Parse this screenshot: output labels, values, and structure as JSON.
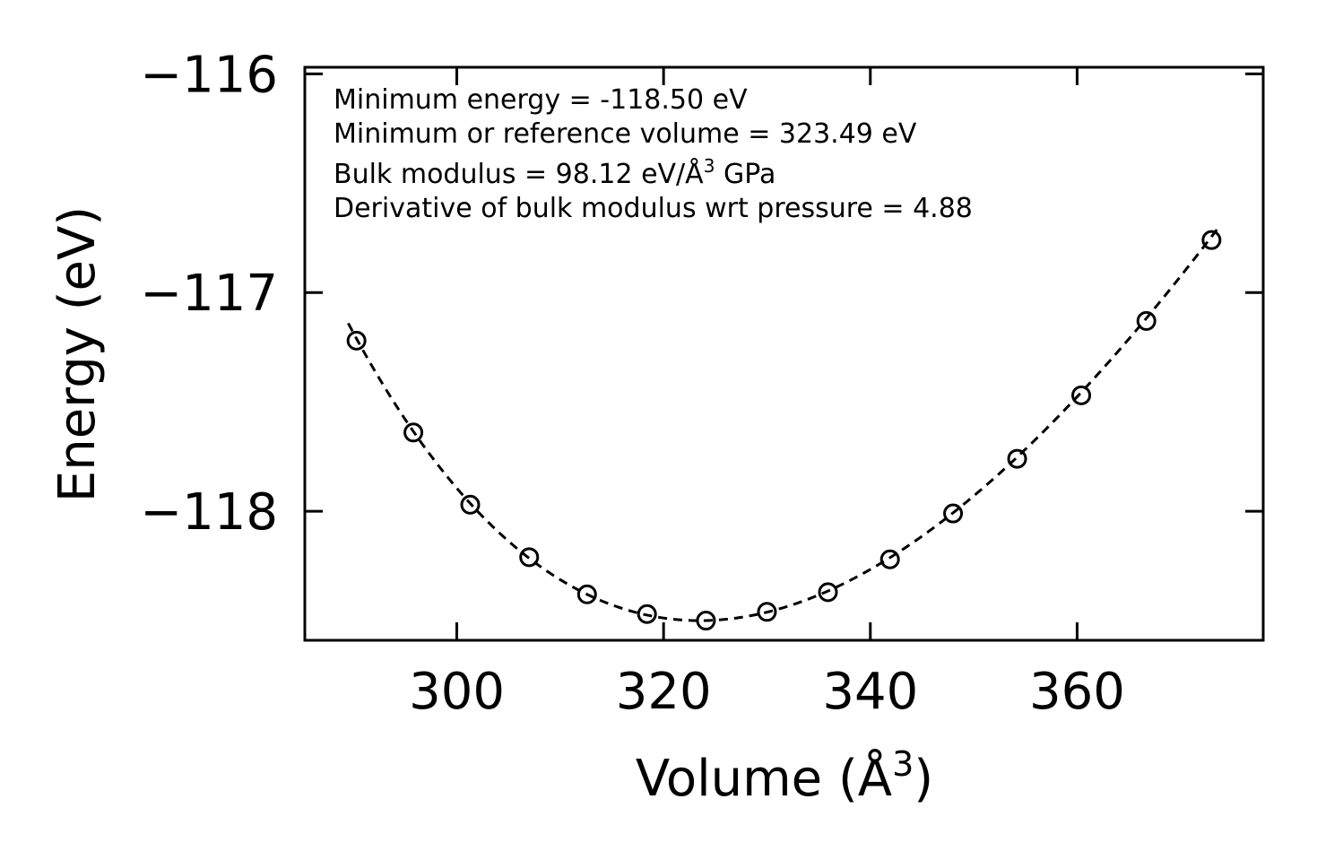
{
  "chart_data": {
    "type": "scatter",
    "xlabel": "Volume (Å",
    "xlabel_sup": "3",
    "xlabel_close": ")",
    "ylabel": "Energy (eV)",
    "xlim": [
      285.3,
      378.0
    ],
    "ylim": [
      -118.59,
      -115.97
    ],
    "xticks": [
      300,
      320,
      340,
      360
    ],
    "xtick_labels": [
      "300",
      "320",
      "340",
      "360"
    ],
    "yticks": [
      -116,
      -117,
      -118
    ],
    "ytick_labels": [
      "−116",
      "−117",
      "−118"
    ],
    "series": [
      {
        "name": "data",
        "style": "open-circle",
        "x": [
          290.3,
          295.8,
          301.3,
          307.0,
          312.6,
          318.4,
          324.1,
          330.0,
          335.9,
          341.9,
          348.0,
          354.2,
          360.4,
          366.7,
          373.0
        ],
        "y": [
          -117.22,
          -117.64,
          -117.97,
          -118.21,
          -118.38,
          -118.47,
          -118.5,
          -118.46,
          -118.37,
          -118.22,
          -118.01,
          -117.76,
          -117.47,
          -117.13,
          -116.76
        ]
      },
      {
        "name": "fit",
        "style": "dashed-line",
        "x_range": [
          289.5,
          373.8
        ]
      }
    ],
    "fit_params": {
      "E0": -118.5,
      "V0": 323.49,
      "B": 98.12,
      "Bp": 4.88
    },
    "annotations": [
      "Minimum energy = -118.50 eV",
      "Minimum or reference volume = 323.49 eV",
      "Bulk modulus = 98.12 eV/Å",
      "3",
      " GPa",
      "Derivative of bulk modulus wrt pressure = 4.88"
    ]
  }
}
